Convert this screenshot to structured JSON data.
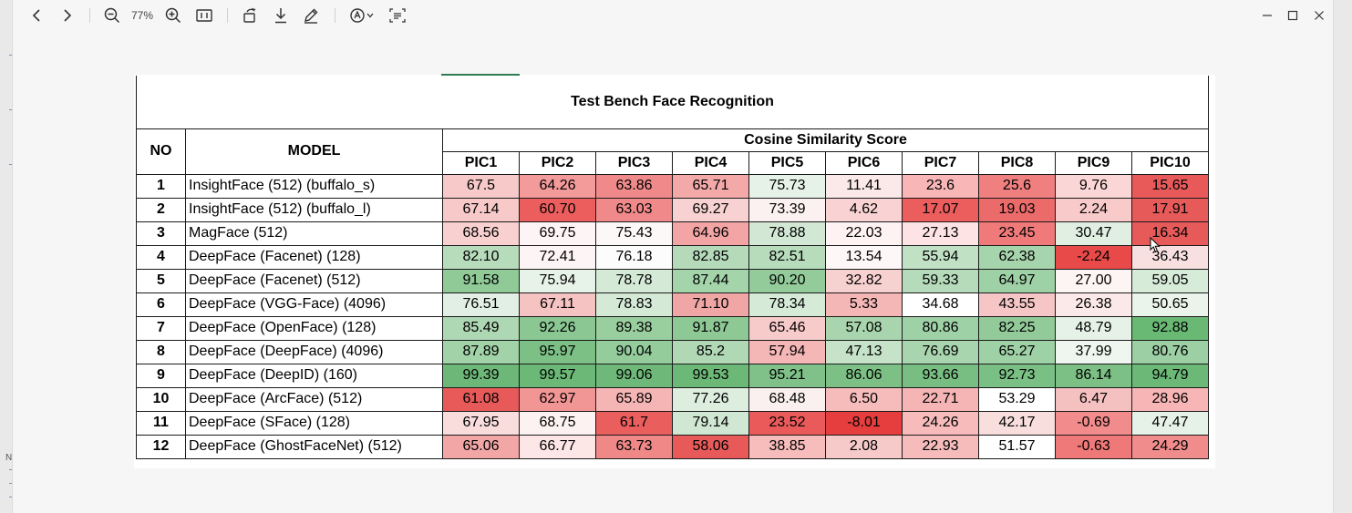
{
  "toolbar": {
    "zoom_label": "77%",
    "icons": [
      "back-icon",
      "forward-icon",
      "zoom-out-icon",
      "zoom-in-icon",
      "fit-page-icon",
      "rotate-icon",
      "download-icon",
      "draw-icon",
      "read-aloud-icon",
      "dropdown-chevron-icon",
      "immersive-reader-icon",
      "minimize-icon",
      "maximize-icon",
      "close-icon"
    ]
  },
  "left_margin_text": "N",
  "table": {
    "title": "Test Bench Face Recognition",
    "header_no": "NO",
    "header_model": "MODEL",
    "header_group": "Cosine Similarity Score",
    "columns": [
      "PIC1",
      "PIC2",
      "PIC3",
      "PIC4",
      "PIC5",
      "PIC6",
      "PIC7",
      "PIC8",
      "PIC9",
      "PIC10"
    ],
    "rows": [
      {
        "no": "1",
        "model": "InsightFace (512) (buffalo_s)",
        "values": [
          "67.5",
          "64.26",
          "63.86",
          "65.71",
          "75.73",
          "11.41",
          "23.6",
          "25.6",
          "9.76",
          "15.65"
        ],
        "colors": [
          "#f7c9c9",
          "#f39a9a",
          "#f08a8a",
          "#f4a9a9",
          "#e6f1e7",
          "#fbe8e8",
          "#f8b6b6",
          "#f07f7f",
          "#fbd6d6",
          "#e85a5a"
        ]
      },
      {
        "no": "2",
        "model": "InsightFace (512) (buffalo_l)",
        "values": [
          "67.14",
          "60.70",
          "63.03",
          "69.27",
          "73.39",
          "4.62",
          "17.07",
          "19.03",
          "2.24",
          "17.91"
        ],
        "colors": [
          "#f7c9c9",
          "#ec5e5e",
          "#f08a8a",
          "#f8d2d2",
          "#fbf1f1",
          "#f9d3d3",
          "#ec5d5d",
          "#eb6b6b",
          "#f9caca",
          "#e65a5a"
        ]
      },
      {
        "no": "3",
        "model": "MagFace (512)",
        "values": [
          "68.56",
          "69.75",
          "75.43",
          "64.96",
          "78.88",
          "22.03",
          "27.13",
          "23.45",
          "30.47",
          "16.34"
        ],
        "colors": [
          "#f8d0d0",
          "#fdf5f5",
          "#fdf8f8",
          "#f3a4a4",
          "#d2e8d4",
          "#fef2f2",
          "#fde3e3",
          "#f07a7a",
          "#e0efe2",
          "#e65a5a"
        ]
      },
      {
        "no": "4",
        "model": "DeepFace (Facenet) (128)",
        "values": [
          "82.10",
          "72.41",
          "76.18",
          "82.85",
          "82.51",
          "13.54",
          "55.94",
          "62.38",
          "-2.24",
          "36.43"
        ],
        "colors": [
          "#b6dcbb",
          "#fdf5f5",
          "#fdfcfc",
          "#b4dab9",
          "#b6dcbb",
          "#fdf7f7",
          "#c1e1c5",
          "#a6d4ac",
          "#e84a4a",
          "#f9e0e0"
        ]
      },
      {
        "no": "5",
        "model": "DeepFace (Facenet) (512)",
        "values": [
          "91.58",
          "75.94",
          "78.78",
          "87.44",
          "90.20",
          "32.82",
          "59.33",
          "64.97",
          "27.00",
          "59.05"
        ],
        "colors": [
          "#8fca97",
          "#e7f2e8",
          "#d4e9d6",
          "#a4d4aa",
          "#93cb9a",
          "#f7d0d0",
          "#b5dbba",
          "#9fd1a6",
          "#fdf4f4",
          "#d7ebd9"
        ]
      },
      {
        "no": "6",
        "model": "DeepFace (VGG-Face) (4096)",
        "values": [
          "76.51",
          "67.11",
          "78.83",
          "71.10",
          "78.34",
          "5.33",
          "34.68",
          "43.55",
          "26.38",
          "50.65"
        ],
        "colors": [
          "#e2efe4",
          "#f6c3c3",
          "#d4e9d6",
          "#f1a6a6",
          "#d6ead8",
          "#f5b6b6",
          "#ffffff",
          "#f6c6c6",
          "#fbe8e8",
          "#eaf4eb"
        ]
      },
      {
        "no": "7",
        "model": "DeepFace (OpenFace) (128)",
        "values": [
          "85.49",
          "92.26",
          "89.38",
          "91.87",
          "65.46",
          "57.08",
          "80.86",
          "82.25",
          "48.79",
          "92.88"
        ],
        "colors": [
          "#aed7b3",
          "#8bc793",
          "#99ce9f",
          "#8dc895",
          "#f8cbcb",
          "#a9d5ae",
          "#9fd1a6",
          "#92cb99",
          "#e6f1e7",
          "#69b974"
        ]
      },
      {
        "no": "8",
        "model": "DeepFace (DeepFace) (4096)",
        "values": [
          "87.89",
          "95.97",
          "90.04",
          "85.2",
          "57.94",
          "47.13",
          "76.69",
          "65.27",
          "37.99",
          "80.76"
        ],
        "colors": [
          "#a1d2a8",
          "#7cc085",
          "#95cc9c",
          "#b0d8b5",
          "#f5b6b6",
          "#c6e3ca",
          "#a9d5ae",
          "#9fd1a6",
          "#eef6ef",
          "#9ccf a3"
        ]
      },
      {
        "no": "9",
        "model": "DeepFace (DeepID) (160)",
        "values": [
          "99.39",
          "99.57",
          "99.06",
          "99.53",
          "95.21",
          "86.06",
          "93.66",
          "92.73",
          "86.14",
          "94.79"
        ],
        "colors": [
          "#6db878",
          "#6cb877",
          "#6eb979",
          "#6cb877",
          "#7fc188",
          "#7cc085",
          "#78be82",
          "#7ac084",
          "#7cc085",
          "#6cb877"
        ]
      },
      {
        "no": "10",
        "model": "DeepFace (ArcFace) (512)",
        "values": [
          "61.08",
          "62.97",
          "65.89",
          "77.26",
          "68.48",
          "6.50",
          "22.71",
          "53.29",
          "6.47",
          "28.96"
        ],
        "colors": [
          "#e85a5a",
          "#f29595",
          "#f6b5b5",
          "#ddeedf",
          "#fbf0f0",
          "#f6bcbc",
          "#f6b5b5",
          "#ffffff",
          "#f5c0c0",
          "#f7b5b5"
        ]
      },
      {
        "no": "11",
        "model": "DeepFace (SFace) (128)",
        "values": [
          "67.95",
          "68.75",
          "61.7",
          "79.14",
          "23.52",
          "-8.01",
          "24.26",
          "42.17",
          "-0.69",
          "47.47"
        ],
        "colors": [
          "#f9dcdc",
          "#fdf2f2",
          "#ea5e5e",
          "#d0e7d3",
          "#ea5a5a",
          "#e63e3e",
          "#f7bbbb",
          "#f9dede",
          "#f28c8c",
          "#e6f2e8"
        ]
      },
      {
        "no": "12",
        "model": "DeepFace (GhostFaceNet) (512)",
        "values": [
          "65.06",
          "66.77",
          "63.73",
          "58.06",
          "38.85",
          "2.08",
          "22.93",
          "51.57",
          "-0.63",
          "24.29"
        ],
        "colors": [
          "#f3a6a6",
          "#fde6e6",
          "#f08888",
          "#e85a5a",
          "#f7bcbc",
          "#f7caca",
          "#f6bcbc",
          "#ffffff",
          "#ef7878",
          "#f08c8c"
        ]
      }
    ]
  }
}
